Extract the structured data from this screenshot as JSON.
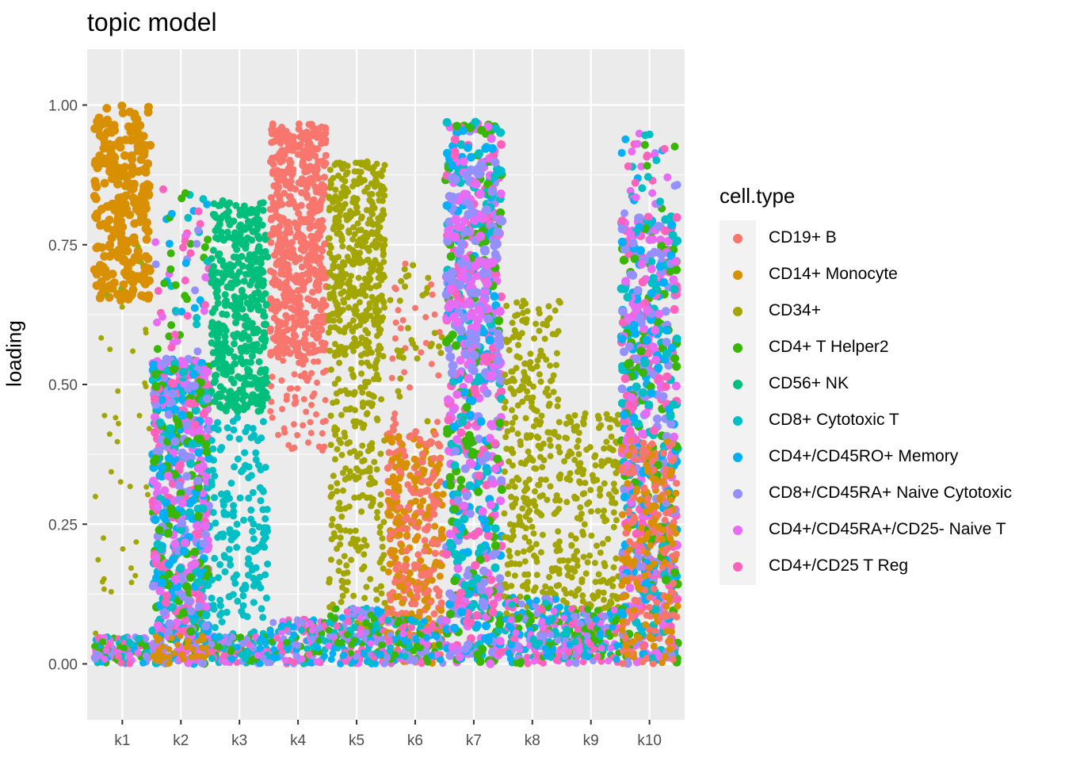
{
  "chart_data": {
    "type": "scatter",
    "title": "topic model",
    "xlabel": "",
    "ylabel": "loading",
    "x_categories": [
      "k1",
      "k2",
      "k3",
      "k4",
      "k5",
      "k6",
      "k7",
      "k8",
      "k9",
      "k10"
    ],
    "ylim": [
      -0.1,
      1.1
    ],
    "y_ticks": [
      0.0,
      0.25,
      0.5,
      0.75,
      1.0
    ],
    "y_tick_labels": [
      "0.00",
      "0.25",
      "0.50",
      "0.75",
      "1.00"
    ],
    "grid": true,
    "legend_title": "cell.type",
    "legend_position": "right",
    "series": [
      {
        "name": "CD19+ B",
        "color": "#F8766D"
      },
      {
        "name": "CD14+ Monocyte",
        "color": "#D89000"
      },
      {
        "name": "CD34+",
        "color": "#A3A500"
      },
      {
        "name": "CD4+ T Helper2",
        "color": "#39B600"
      },
      {
        "name": "CD56+ NK",
        "color": "#00BF7D"
      },
      {
        "name": "CD8+ Cytotoxic T",
        "color": "#00BFC4"
      },
      {
        "name": "CD4+/CD45RO+ Memory",
        "color": "#00B0F6"
      },
      {
        "name": "CD8+/CD45RA+ Naive Cytotoxic",
        "color": "#9590FF"
      },
      {
        "name": "CD4+/CD45RA+/CD25- Naive T",
        "color": "#E76BF3"
      },
      {
        "name": "CD4+/CD25 T Reg",
        "color": "#FF62BC"
      }
    ],
    "cluster_summary": [
      {
        "topic": "k1",
        "dominant": "CD14+ Monocyte",
        "high_range": [
          0.65,
          1.0
        ]
      },
      {
        "topic": "k2",
        "dominant": "mixed T cells",
        "high_range": [
          0.0,
          0.55
        ]
      },
      {
        "topic": "k3",
        "dominant": "CD56+ NK",
        "high_range": [
          0.45,
          0.83
        ]
      },
      {
        "topic": "k4",
        "dominant": "CD19+ B",
        "high_range": [
          0.55,
          0.95
        ]
      },
      {
        "topic": "k5",
        "dominant": "CD34+",
        "high_range": [
          0.1,
          0.9
        ]
      },
      {
        "topic": "k6",
        "dominant": "CD19+ B / CD14+ Monocyte",
        "high_range": [
          0.0,
          0.4
        ]
      },
      {
        "topic": "k7",
        "dominant": "mixed T cells",
        "high_range": [
          0.0,
          0.97
        ]
      },
      {
        "topic": "k8",
        "dominant": "CD34+",
        "high_range": [
          0.0,
          0.65
        ]
      },
      {
        "topic": "k9",
        "dominant": "CD34+",
        "high_range": [
          0.0,
          0.45
        ]
      },
      {
        "topic": "k10",
        "dominant": "mixed T cells",
        "high_range": [
          0.0,
          0.8
        ]
      }
    ]
  }
}
